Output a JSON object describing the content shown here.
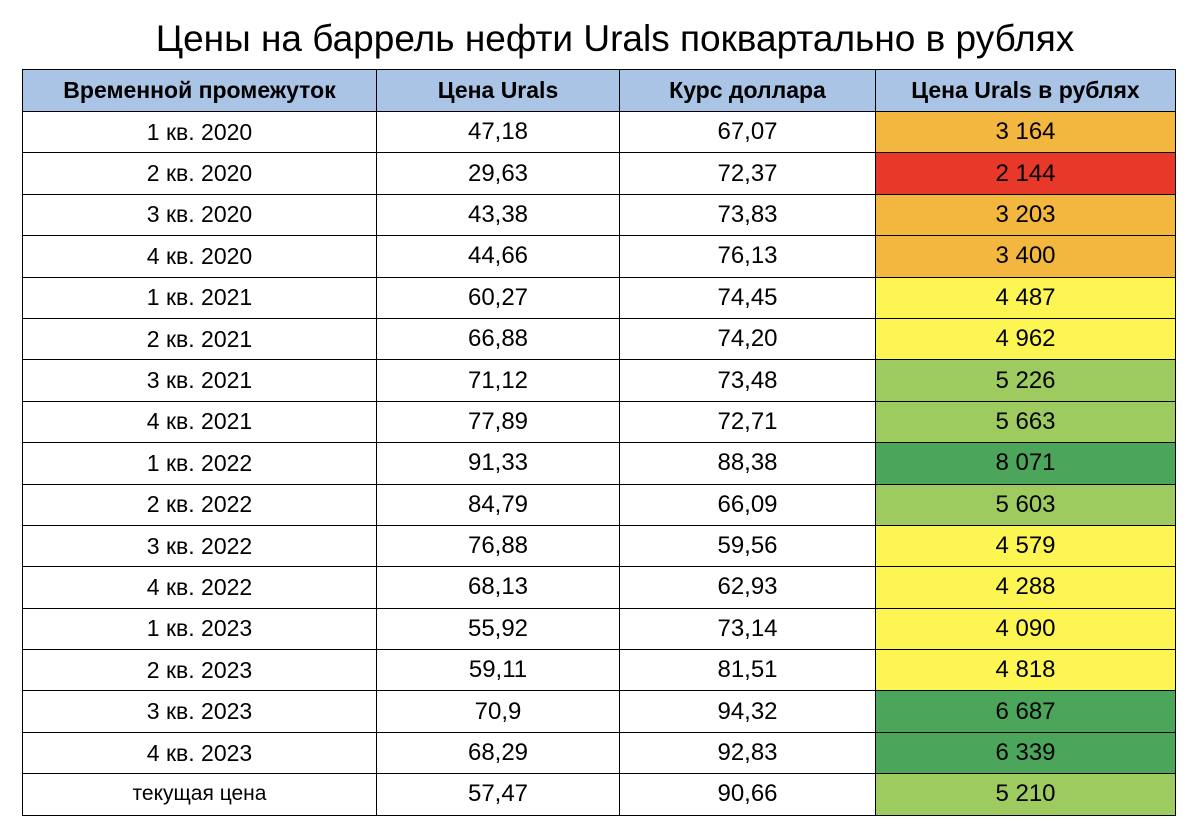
{
  "title": "Цены на баррель нефти Urals поквартально в рублях",
  "table": {
    "headers": [
      "Временной промежуток",
      "Цена Urals",
      "Курс доллара",
      "Цена Urals в рублях"
    ],
    "rows": [
      {
        "period": "1 кв. 2020",
        "urals": "47,18",
        "usd": "67,07",
        "rub": "3 164",
        "color": "#f3b73f"
      },
      {
        "period": "2 кв. 2020",
        "urals": "29,63",
        "usd": "72,37",
        "rub": "2 144",
        "color": "#e8382a"
      },
      {
        "period": "3 кв. 2020",
        "urals": "43,38",
        "usd": "73,83",
        "rub": "3 203",
        "color": "#f3b73f"
      },
      {
        "period": "4 кв. 2020",
        "urals": "44,66",
        "usd": "76,13",
        "rub": "3 400",
        "color": "#f3b73f"
      },
      {
        "period": "1 кв. 2021",
        "urals": "60,27",
        "usd": "74,45",
        "rub": "4 487",
        "color": "#fdf552"
      },
      {
        "period": "2 кв. 2021",
        "urals": "66,88",
        "usd": "74,20",
        "rub": "4 962",
        "color": "#fdf552"
      },
      {
        "period": "3 кв. 2021",
        "urals": "71,12",
        "usd": "73,48",
        "rub": "5 226",
        "color": "#9dcb5f"
      },
      {
        "period": "4 кв. 2021",
        "urals": "77,89",
        "usd": "72,71",
        "rub": "5 663",
        "color": "#9dcb5f"
      },
      {
        "period": "1 кв. 2022",
        "urals": "91,33",
        "usd": "88,38",
        "rub": "8 071",
        "color": "#4ba55a"
      },
      {
        "period": "2 кв. 2022",
        "urals": "84,79",
        "usd": "66,09",
        "rub": "5 603",
        "color": "#9dcb5f"
      },
      {
        "period": "3 кв. 2022",
        "urals": "76,88",
        "usd": "59,56",
        "rub": "4 579",
        "color": "#fdf552"
      },
      {
        "period": "4 кв. 2022",
        "urals": "68,13",
        "usd": "62,93",
        "rub": "4 288",
        "color": "#fdf552"
      },
      {
        "period": "1 кв. 2023",
        "urals": "55,92",
        "usd": "73,14",
        "rub": "4 090",
        "color": "#fdf552"
      },
      {
        "period": "2 кв. 2023",
        "urals": "59,11",
        "usd": "81,51",
        "rub": "4 818",
        "color": "#fdf552"
      },
      {
        "period": "3 кв. 2023",
        "urals": "70,9",
        "usd": "94,32",
        "rub": "6 687",
        "color": "#4ba55a"
      },
      {
        "period": "4 кв. 2023",
        "urals": "68,29",
        "usd": "92,83",
        "rub": "6 339",
        "color": "#4ba55a"
      },
      {
        "period": "текущая цена",
        "urals": "57,47",
        "usd": "90,66",
        "rub": "5 210",
        "color": "#9dcb5f"
      }
    ]
  }
}
